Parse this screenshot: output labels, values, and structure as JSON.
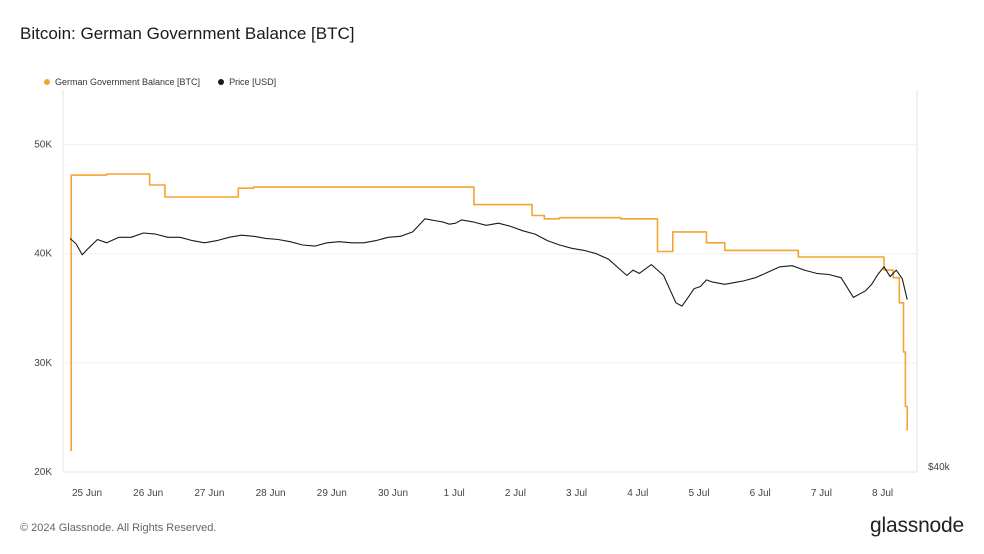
{
  "title": "Bitcoin: German Government Balance [BTC]",
  "footer": "© 2024 Glassnode. All Rights Reserved.",
  "logo": "glassnode",
  "chart_data": {
    "type": "line",
    "grid": true,
    "legend_position": "top-left",
    "x_categories": [
      "25 Jun",
      "26 Jun",
      "27 Jun",
      "28 Jun",
      "29 Jun",
      "30 Jun",
      "1 Jul",
      "2 Jul",
      "3 Jul",
      "4 Jul",
      "5 Jul",
      "6 Jul",
      "7 Jul",
      "8 Jul"
    ],
    "y_left": {
      "ticks": [
        "20K",
        "30K",
        "40K",
        "50K"
      ],
      "tick_values": [
        20000,
        30000,
        40000,
        50000
      ],
      "ylim": [
        20000,
        55000
      ]
    },
    "y_right": {
      "ticks": [
        "$40k"
      ]
    },
    "series": [
      {
        "name": "German Government Balance [BTC]",
        "color": "#f5a332",
        "axis": "left",
        "step": true,
        "x": [
          0.0,
          0.02,
          0.6,
          1.3,
          1.55,
          2.6,
          2.75,
          3.0,
          3.5,
          4.5,
          5.5,
          6.0,
          6.35,
          6.6,
          7.0,
          7.45,
          7.55,
          7.75,
          8.0,
          8.5,
          9.0,
          9.35,
          9.6,
          9.85,
          10.0,
          10.4,
          10.55,
          10.7,
          11.0,
          11.5,
          11.9,
          12.0,
          12.5,
          13.0,
          13.3,
          13.45,
          13.55,
          13.62,
          13.65,
          13.68
        ],
        "values": [
          22000,
          47200,
          47300,
          46300,
          45200,
          45200,
          46000,
          46100,
          46100,
          46100,
          46100,
          46100,
          46100,
          44500,
          44500,
          44500,
          43500,
          43200,
          43300,
          43300,
          43200,
          43200,
          40200,
          42000,
          42000,
          41000,
          41000,
          40300,
          40300,
          40300,
          39700,
          39700,
          39700,
          39700,
          38500,
          37800,
          35500,
          31000,
          26000,
          23800
        ]
      },
      {
        "name": "Price [USD]",
        "color": "#1a1a1a",
        "axis": "right",
        "x": [
          0.0,
          0.1,
          0.2,
          0.3,
          0.45,
          0.6,
          0.8,
          1.0,
          1.2,
          1.4,
          1.6,
          1.8,
          2.0,
          2.2,
          2.4,
          2.6,
          2.8,
          3.0,
          3.2,
          3.4,
          3.6,
          3.8,
          4.0,
          4.2,
          4.4,
          4.6,
          4.8,
          5.0,
          5.2,
          5.4,
          5.6,
          5.8,
          6.0,
          6.1,
          6.2,
          6.3,
          6.4,
          6.6,
          6.8,
          7.0,
          7.2,
          7.4,
          7.6,
          7.8,
          8.0,
          8.2,
          8.4,
          8.6,
          8.8,
          9.0,
          9.1,
          9.2,
          9.3,
          9.5,
          9.7,
          9.9,
          10.0,
          10.1,
          10.2,
          10.3,
          10.4,
          10.5,
          10.7,
          10.9,
          11.0,
          11.2,
          11.4,
          11.6,
          11.8,
          12.0,
          12.2,
          12.4,
          12.6,
          12.8,
          13.0,
          13.1,
          13.2,
          13.3,
          13.4,
          13.5,
          13.6,
          13.68
        ],
        "values": [
          41400,
          40900,
          39900,
          40500,
          41300,
          41000,
          41500,
          41500,
          41900,
          41800,
          41500,
          41500,
          41200,
          41000,
          41200,
          41500,
          41700,
          41600,
          41400,
          41300,
          41100,
          40800,
          40700,
          41000,
          41100,
          41000,
          41000,
          41200,
          41500,
          41600,
          42000,
          43200,
          43000,
          42900,
          42700,
          42800,
          43100,
          42900,
          42600,
          42800,
          42500,
          42100,
          41800,
          41200,
          40800,
          40500,
          40300,
          40000,
          39500,
          38500,
          38000,
          38500,
          38200,
          39000,
          38000,
          35500,
          35200,
          36000,
          36800,
          37000,
          37600,
          37400,
          37200,
          37400,
          37500,
          37800,
          38300,
          38800,
          38900,
          38500,
          38200,
          38100,
          37800,
          36000,
          36600,
          37200,
          38100,
          38800,
          37900,
          38500,
          37700,
          35800
        ]
      }
    ]
  }
}
